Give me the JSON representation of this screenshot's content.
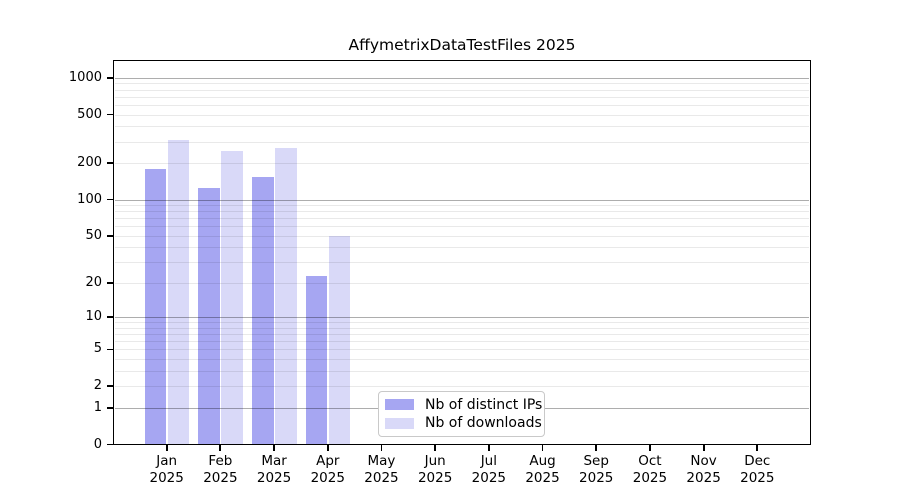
{
  "title": "AffymetrixDataTestFiles 2025",
  "colors": {
    "distinct_ips_bar": "#a6a6f2",
    "downloads_bar": "#d9d9f8",
    "grid_major": "#b0b0b0",
    "grid_minor": "#e8e8e8",
    "axis": "#000000",
    "legend_border": "#c9c9c9",
    "background": "#ffffff"
  },
  "chart_data": {
    "type": "bar",
    "title": "AffymetrixDataTestFiles 2025",
    "categories": [
      "Jan 2025",
      "Feb 2025",
      "Mar 2025",
      "Apr 2025",
      "May 2025",
      "Jun 2025",
      "Jul 2025",
      "Aug 2025",
      "Sep 2025",
      "Oct 2025",
      "Nov 2025",
      "Dec 2025"
    ],
    "series": [
      {
        "name": "Nb of distinct IPs",
        "color": "#a6a6f2",
        "values": [
          180,
          125,
          155,
          23,
          0,
          0,
          0,
          0,
          0,
          0,
          0,
          0
        ]
      },
      {
        "name": "Nb of downloads",
        "color": "#d9d9f8",
        "values": [
          310,
          250,
          265,
          50,
          0,
          0,
          0,
          0,
          0,
          0,
          0,
          0
        ]
      }
    ],
    "xlabel": "",
    "ylabel": "",
    "yscale": "log10(1+y)",
    "yticks": [
      0,
      1,
      2,
      5,
      10,
      20,
      50,
      100,
      200,
      500,
      1000
    ],
    "ylim": [
      0,
      1380
    ],
    "grid": true,
    "legend_position": "bottom-center"
  }
}
